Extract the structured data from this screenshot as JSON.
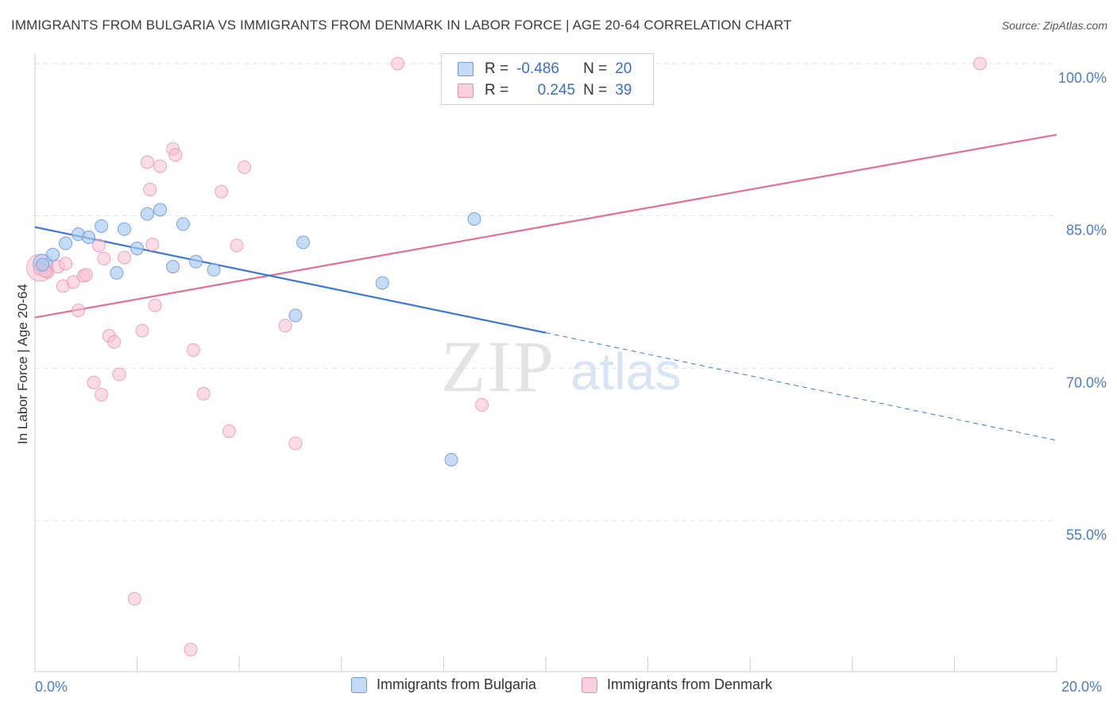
{
  "title": "IMMIGRANTS FROM BULGARIA VS IMMIGRANTS FROM DENMARK IN LABOR FORCE | AGE 20-64 CORRELATION CHART",
  "source": "Source: ZipAtlas.com",
  "watermark": {
    "zip": "ZIP",
    "atlas": "atlas"
  },
  "legend": {
    "rows": [
      {
        "r_label": "R =",
        "r_value": "-0.486",
        "n_label": "N =",
        "n_value": "20",
        "color": "#a8c8f0",
        "border": "#6c9be0"
      },
      {
        "r_label": "R =",
        "r_value": "0.245",
        "n_label": "N =",
        "n_value": "39",
        "color": "#f8c0d2",
        "border": "#e890ae"
      }
    ]
  },
  "bottom_legend": [
    {
      "label": "Immigrants from Bulgaria",
      "color": "#c4daf6",
      "border": "#6c9be0"
    },
    {
      "label": "Immigrants from Denmark",
      "color": "#fad0de",
      "border": "#e890ae"
    }
  ],
  "chart_data": {
    "type": "scatter",
    "title": "IMMIGRANTS FROM BULGARIA VS IMMIGRANTS FROM DENMARK IN LABOR FORCE | AGE 20-64 CORRELATION CHART",
    "xlabel": "",
    "ylabel": "In Labor Force | Age 20-64",
    "xlim": [
      0,
      20
    ],
    "ylim": [
      41,
      101.5
    ],
    "x_tick_labels": [
      "0.0%",
      "20.0%"
    ],
    "y_ticks": [
      55,
      70,
      85,
      100
    ],
    "y_tick_labels": [
      "55.0%",
      "70.0%",
      "85.0%",
      "100.0%"
    ],
    "series": [
      {
        "name": "Immigrants from Bulgaria",
        "color": "#6c9be0",
        "fill": "#a8c8f0",
        "points": [
          [
            0.15,
            80.2
          ],
          [
            0.35,
            81.2
          ],
          [
            0.6,
            82.3
          ],
          [
            0.85,
            83.2
          ],
          [
            1.05,
            82.9
          ],
          [
            1.3,
            84.0
          ],
          [
            1.6,
            79.4
          ],
          [
            1.75,
            83.7
          ],
          [
            2.0,
            81.8
          ],
          [
            2.2,
            85.2
          ],
          [
            2.45,
            85.6
          ],
          [
            2.7,
            80.0
          ],
          [
            2.9,
            84.2
          ],
          [
            3.15,
            80.5
          ],
          [
            3.5,
            79.7
          ],
          [
            5.1,
            75.2
          ],
          [
            5.25,
            82.4
          ],
          [
            6.8,
            78.4
          ],
          [
            8.15,
            61.0
          ],
          [
            8.6,
            84.7
          ]
        ],
        "trend": {
          "x": [
            0,
            10
          ],
          "y": [
            83.9,
            73.5
          ],
          "dashed_to": [
            20,
            62.9
          ]
        }
      },
      {
        "name": "Immigrants from Denmark",
        "color": "#e890ae",
        "fill": "#f8c0d2",
        "points": [
          [
            0.1,
            79.8
          ],
          [
            0.25,
            79.5
          ],
          [
            0.45,
            80.0
          ],
          [
            0.55,
            78.1
          ],
          [
            0.6,
            80.3
          ],
          [
            0.75,
            78.5
          ],
          [
            0.85,
            75.7
          ],
          [
            0.95,
            79.1
          ],
          [
            1.0,
            79.2
          ],
          [
            1.15,
            68.6
          ],
          [
            1.25,
            82.1
          ],
          [
            1.3,
            67.4
          ],
          [
            1.35,
            80.8
          ],
          [
            1.45,
            73.2
          ],
          [
            1.55,
            72.6
          ],
          [
            1.65,
            69.4
          ],
          [
            1.75,
            80.9
          ],
          [
            1.95,
            47.3
          ],
          [
            2.1,
            73.7
          ],
          [
            2.2,
            90.3
          ],
          [
            2.25,
            87.6
          ],
          [
            2.35,
            76.2
          ],
          [
            2.45,
            89.9
          ],
          [
            2.7,
            91.6
          ],
          [
            2.75,
            91.0
          ],
          [
            3.05,
            42.3
          ],
          [
            3.1,
            71.8
          ],
          [
            3.3,
            67.5
          ],
          [
            3.65,
            87.4
          ],
          [
            3.8,
            63.8
          ],
          [
            3.95,
            82.1
          ],
          [
            4.1,
            89.8
          ],
          [
            4.9,
            74.2
          ],
          [
            5.1,
            62.6
          ],
          [
            7.1,
            100.0
          ],
          [
            8.75,
            66.4
          ],
          [
            18.5,
            100.0
          ],
          [
            2.3,
            82.2
          ],
          [
            0.2,
            79.6
          ]
        ],
        "trend": {
          "x": [
            0,
            20
          ],
          "y": [
            75.0,
            93.0
          ]
        }
      }
    ]
  }
}
